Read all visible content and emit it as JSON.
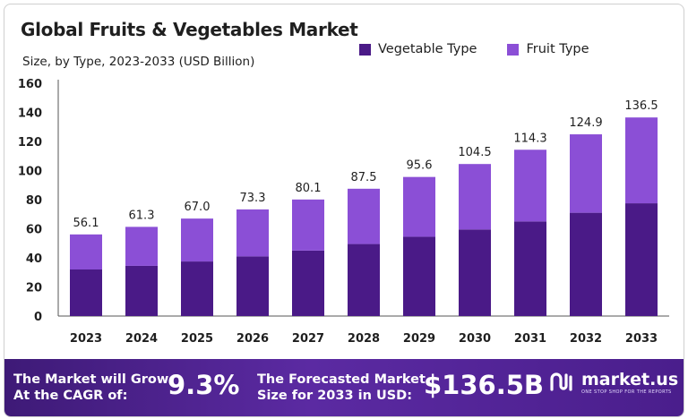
{
  "colors": {
    "vegetable": "#4a1a87",
    "fruit": "#8b4fd6",
    "banner_start": "#3e1a77",
    "banner_end": "#4a1e8c"
  },
  "header": {
    "title": "Global Fruits & Vegetables Market",
    "subtitle": "Size, by Type, 2023-2033 (USD Billion)"
  },
  "legend": [
    "Vegetable Type",
    "Fruit Type"
  ],
  "chart_data": {
    "type": "bar",
    "stacked": true,
    "categories": [
      "2023",
      "2024",
      "2025",
      "2026",
      "2027",
      "2028",
      "2029",
      "2030",
      "2031",
      "2032",
      "2033"
    ],
    "series": [
      {
        "name": "Vegetable Type",
        "values": [
          32,
          34.5,
          37.5,
          41,
          45,
          49.5,
          54.5,
          59.5,
          65,
          71,
          77.5
        ]
      },
      {
        "name": "Fruit Type",
        "values": [
          24.1,
          26.8,
          29.5,
          32.3,
          35.1,
          38.0,
          41.1,
          45.0,
          49.3,
          53.9,
          59.0
        ]
      }
    ],
    "totals": [
      56.1,
      61.3,
      67.0,
      73.3,
      80.1,
      87.5,
      95.6,
      104.5,
      114.3,
      124.9,
      136.5
    ],
    "total_labels": [
      "56.1",
      "61.3",
      "67.0",
      "73.3",
      "80.1",
      "87.5",
      "95.6",
      "104.5",
      "114.3",
      "124.9",
      "136.5"
    ],
    "yticks": [
      "0",
      "20",
      "40",
      "60",
      "80",
      "100",
      "120",
      "140",
      "160"
    ],
    "ylim": [
      0,
      160
    ],
    "grid": false,
    "legend_position": "top-right"
  },
  "banner": {
    "cagr_text_line1": "The Market will Grow",
    "cagr_text_line2": "At the CAGR of:",
    "cagr_value": "9.3%",
    "forecast_text_line1": "The Forecasted Market",
    "forecast_text_line2": "Size for 2033 in USD:",
    "forecast_value": "$136.5B",
    "brand_name": "market.us",
    "brand_tagline": "ONE STOP SHOP FOR THE REPORTS",
    "brand_logo_icon": "market-us-logo-icon"
  }
}
